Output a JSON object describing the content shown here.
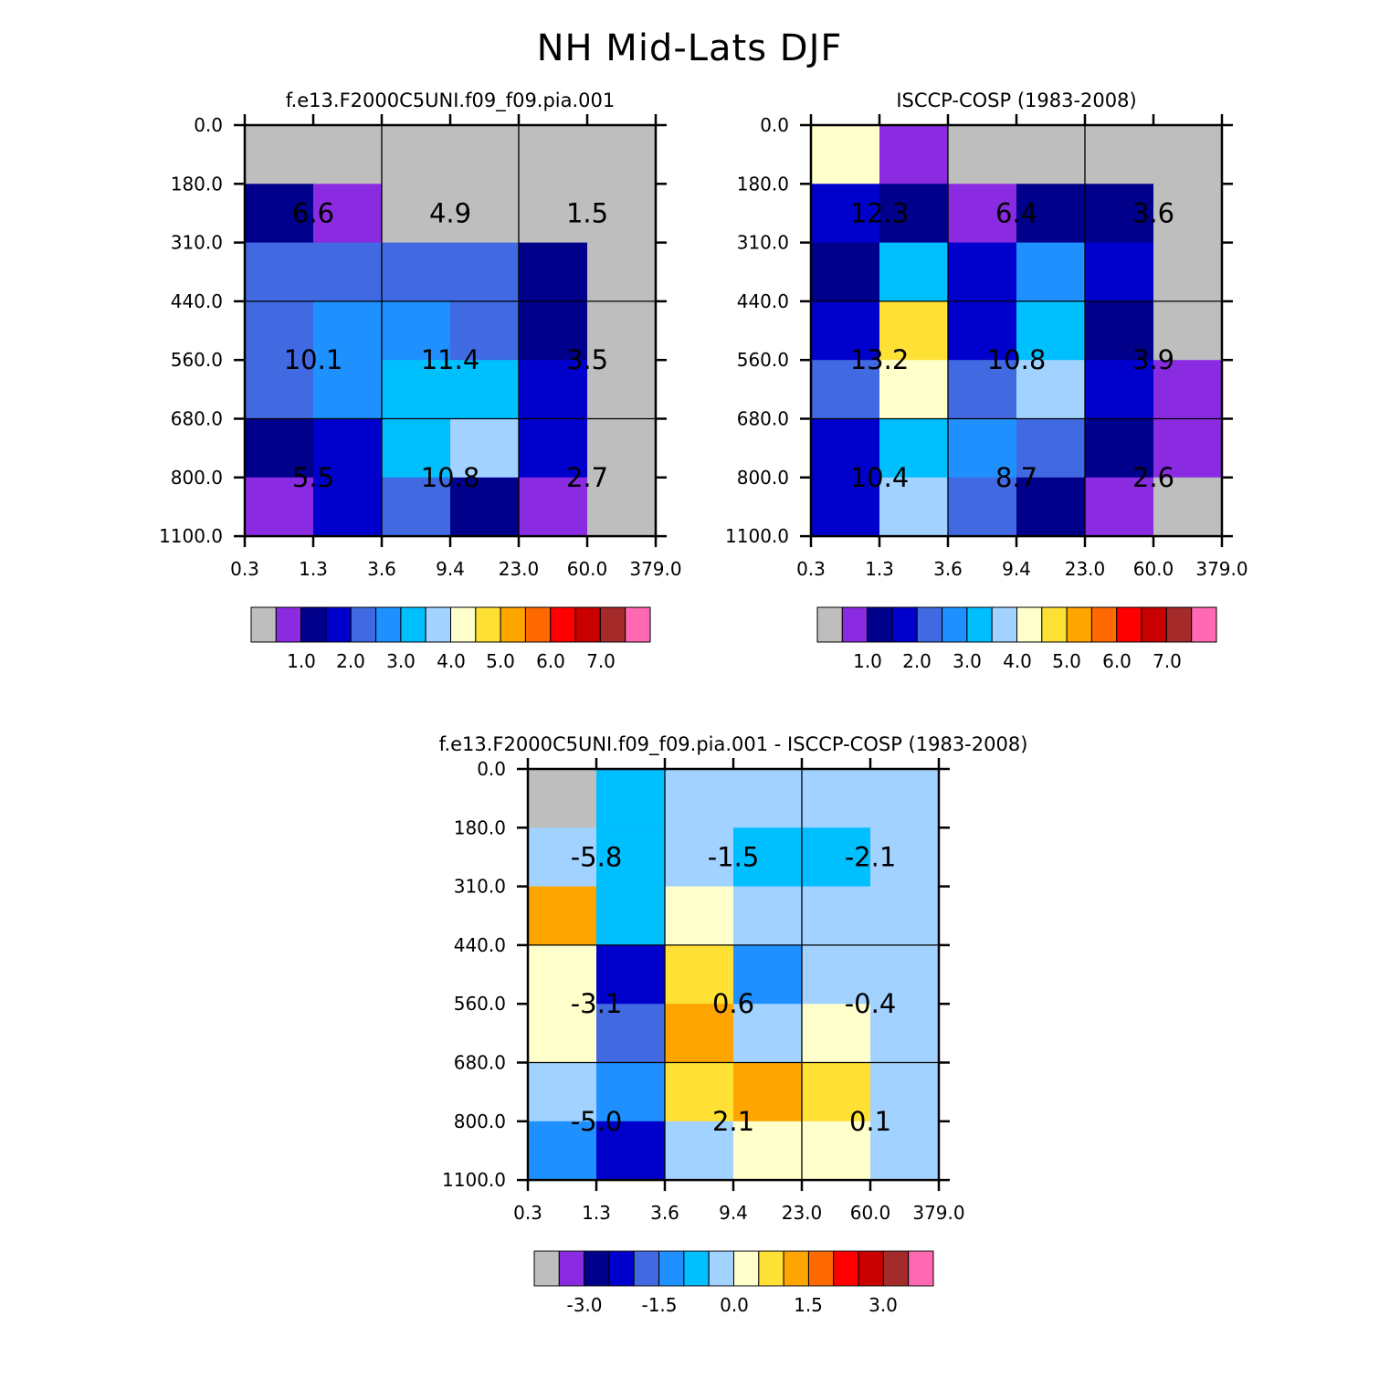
{
  "title": "NH Mid-Lats DJF",
  "palette": [
    "#BEBEBE",
    "#8A2BE2",
    "#00008B",
    "#0000CD",
    "#4169E1",
    "#1E90FF",
    "#00BFFF",
    "#A2D2FF",
    "#FFFFCC",
    "#FFE135",
    "#FFA500",
    "#FF6A00",
    "#FF0000",
    "#C80000",
    "#A52A2A",
    "#FF69B4"
  ],
  "chart_data": [
    {
      "type": "heatmap",
      "name": "model",
      "title": "f.e13.F2000C5UNI.f09_f09.pia.001",
      "xlabel": "",
      "ylabel": "",
      "x_ticks": [
        "0.3",
        "1.3",
        "3.6",
        "9.4",
        "23.0",
        "60.0",
        "379.0"
      ],
      "y_ticks": [
        "0.0",
        "180.0",
        "310.0",
        "440.0",
        "560.0",
        "680.0",
        "800.0",
        "1100.0"
      ],
      "colorbar_labels": [
        "1.0",
        "2.0",
        "3.0",
        "4.0",
        "5.0",
        "6.0",
        "7.0"
      ],
      "cell_color_index": [
        [
          0,
          0,
          0,
          0,
          0,
          0
        ],
        [
          2,
          1,
          0,
          0,
          0,
          0
        ],
        [
          4,
          4,
          4,
          4,
          2,
          0
        ],
        [
          4,
          5,
          5,
          4,
          2,
          0
        ],
        [
          4,
          5,
          6,
          6,
          3,
          0
        ],
        [
          2,
          3,
          6,
          7,
          3,
          0
        ],
        [
          1,
          3,
          4,
          2,
          1,
          0
        ]
      ],
      "box_labels": [
        [
          "6.6",
          "4.9",
          "1.5"
        ],
        [
          "10.1",
          "11.4",
          "3.5"
        ],
        [
          "5.5",
          "10.8",
          "2.7"
        ]
      ]
    },
    {
      "type": "heatmap",
      "name": "obs",
      "title": "ISCCP-COSP (1983-2008)",
      "xlabel": "",
      "ylabel": "",
      "x_ticks": [
        "0.3",
        "1.3",
        "3.6",
        "9.4",
        "23.0",
        "60.0",
        "379.0"
      ],
      "y_ticks": [
        "0.0",
        "180.0",
        "310.0",
        "440.0",
        "560.0",
        "680.0",
        "800.0",
        "1100.0"
      ],
      "colorbar_labels": [
        "1.0",
        "2.0",
        "3.0",
        "4.0",
        "5.0",
        "6.0",
        "7.0"
      ],
      "cell_color_index": [
        [
          8,
          1,
          0,
          0,
          0,
          0
        ],
        [
          3,
          2,
          1,
          2,
          2,
          0
        ],
        [
          2,
          6,
          3,
          5,
          3,
          0
        ],
        [
          3,
          9,
          3,
          6,
          2,
          0
        ],
        [
          4,
          8,
          4,
          7,
          3,
          1
        ],
        [
          3,
          6,
          5,
          4,
          2,
          1
        ],
        [
          3,
          7,
          4,
          2,
          1,
          0
        ]
      ],
      "box_labels": [
        [
          "12.3",
          "6.4",
          "3.6"
        ],
        [
          "13.2",
          "10.8",
          "3.9"
        ],
        [
          "10.4",
          "8.7",
          "2.6"
        ]
      ]
    },
    {
      "type": "heatmap",
      "name": "diff",
      "title": "f.e13.F2000C5UNI.f09_f09.pia.001 - ISCCP-COSP (1983-2008)",
      "xlabel": "",
      "ylabel": "",
      "x_ticks": [
        "0.3",
        "1.3",
        "3.6",
        "9.4",
        "23.0",
        "60.0",
        "379.0"
      ],
      "y_ticks": [
        "0.0",
        "180.0",
        "310.0",
        "440.0",
        "560.0",
        "680.0",
        "800.0",
        "1100.0"
      ],
      "colorbar_labels": [
        "-3.0",
        "-1.5",
        "0.0",
        "1.5",
        "3.0"
      ],
      "cell_color_index": [
        [
          0,
          6,
          7,
          7,
          7,
          7
        ],
        [
          7,
          6,
          7,
          6,
          6,
          7
        ],
        [
          10,
          6,
          8,
          7,
          7,
          7
        ],
        [
          8,
          3,
          9,
          5,
          7,
          7
        ],
        [
          8,
          4,
          10,
          7,
          8,
          7
        ],
        [
          7,
          5,
          9,
          10,
          9,
          7
        ],
        [
          5,
          3,
          7,
          8,
          8,
          7
        ]
      ],
      "box_labels": [
        [
          "-5.8",
          "-1.5",
          "-2.1"
        ],
        [
          "-3.1",
          "0.6",
          "-0.4"
        ],
        [
          "-5.0",
          "2.1",
          "0.1"
        ]
      ]
    }
  ]
}
